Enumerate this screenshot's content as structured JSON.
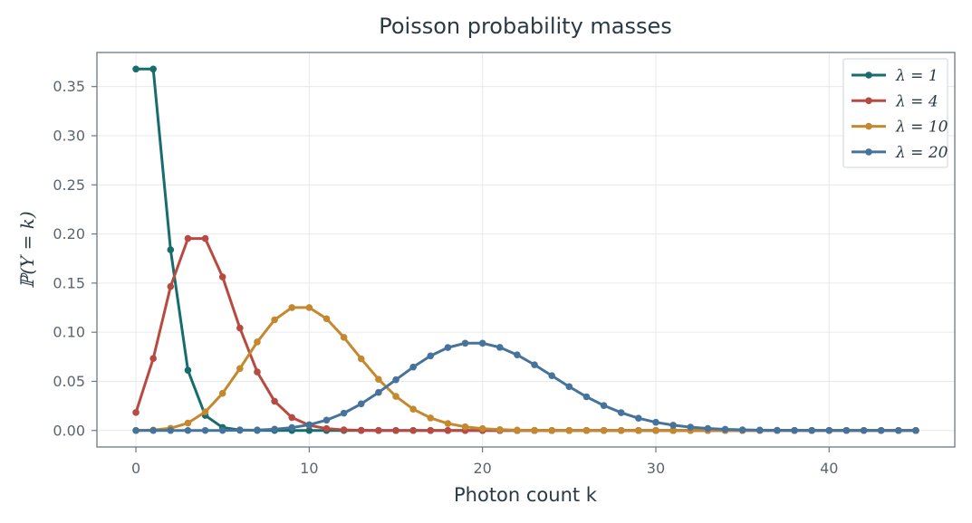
{
  "chart_data": {
    "type": "line",
    "title": "Poisson probability masses",
    "xlabel": "Photon count k",
    "ylabel": "ℙ(Y = k)",
    "xlim": [
      -2.25,
      47.25
    ],
    "ylim": [
      -0.0168,
      0.3847
    ],
    "xticks": [
      0,
      10,
      20,
      30,
      40
    ],
    "yticks": [
      0.0,
      0.05,
      0.1,
      0.15,
      0.2,
      0.25,
      0.3,
      0.35
    ],
    "ytick_labels": [
      "0.00",
      "0.05",
      "0.10",
      "0.15",
      "0.20",
      "0.25",
      "0.30",
      "0.35"
    ],
    "grid": true,
    "legend_position": "top-right",
    "k_max": 45,
    "series": [
      {
        "name": "λ = 1",
        "lambda": 1,
        "color": "#176d6e"
      },
      {
        "name": "λ = 4",
        "lambda": 4,
        "color": "#b84a42"
      },
      {
        "name": "λ = 10",
        "lambda": 10,
        "color": "#c4892f"
      },
      {
        "name": "λ = 20",
        "lambda": 20,
        "color": "#45739c"
      }
    ]
  }
}
